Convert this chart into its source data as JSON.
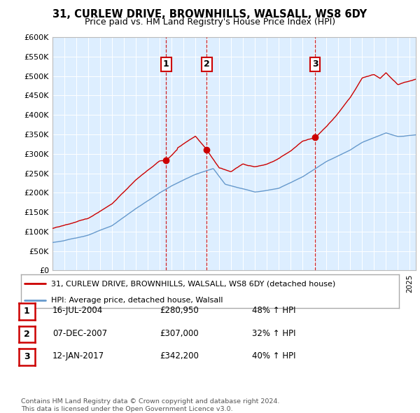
{
  "title": "31, CURLEW DRIVE, BROWNHILLS, WALSALL, WS8 6DY",
  "subtitle": "Price paid vs. HM Land Registry's House Price Index (HPI)",
  "plot_bg_color": "#ddeeff",
  "legend_label_red": "31, CURLEW DRIVE, BROWNHILLS, WALSALL, WS8 6DY (detached house)",
  "legend_label_blue": "HPI: Average price, detached house, Walsall",
  "footer": "Contains HM Land Registry data © Crown copyright and database right 2024.\nThis data is licensed under the Open Government Licence v3.0.",
  "transactions": [
    {
      "num": 1,
      "date": "16-JUL-2004",
      "price": "£280,950",
      "pct": "48% ↑ HPI",
      "year": 2004.54
    },
    {
      "num": 2,
      "date": "07-DEC-2007",
      "price": "£307,000",
      "pct": "32% ↑ HPI",
      "year": 2007.95
    },
    {
      "num": 3,
      "date": "12-JAN-2017",
      "price": "£342,200",
      "pct": "40% ↑ HPI",
      "year": 2017.04
    }
  ],
  "red_color": "#cc0000",
  "blue_color": "#6699cc",
  "ylim": [
    0,
    600000
  ],
  "ytick_max": 600000,
  "ytick_step": 50000,
  "xlim_start": 1995,
  "xlim_end": 2025.5
}
